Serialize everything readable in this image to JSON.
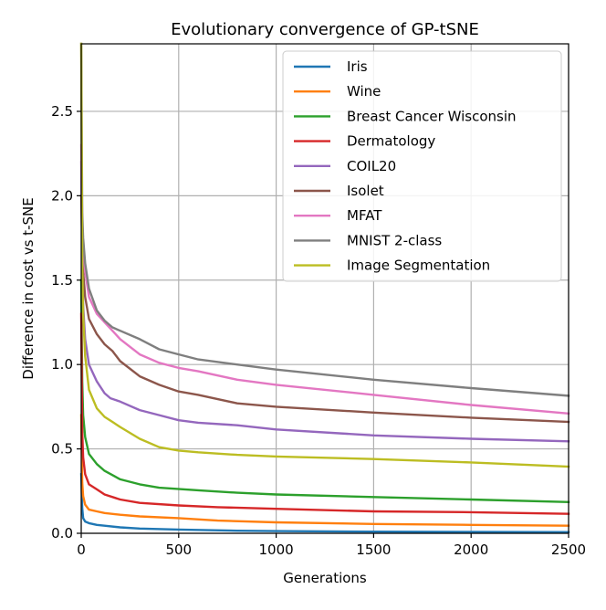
{
  "chart_data": {
    "type": "line",
    "title": "Evolutionary convergence of GP-tSNE",
    "xlabel": "Generations",
    "ylabel": "Difference in cost vs t-SNE",
    "xlim": [
      0,
      2500
    ],
    "ylim": [
      0,
      2.9
    ],
    "xticks": [
      0,
      500,
      1000,
      1500,
      2000,
      2500
    ],
    "yticks": [
      0.0,
      0.5,
      1.0,
      1.5,
      2.0,
      2.5
    ],
    "xtick_labels": [
      "0",
      "500",
      "1000",
      "1500",
      "2000",
      "2500"
    ],
    "ytick_labels": [
      "0.0",
      "0.5",
      "1.0",
      "1.5",
      "2.0",
      "2.5"
    ],
    "grid": true,
    "legend_position": "top-right",
    "series": [
      {
        "name": "Iris",
        "color": "#1f77b4",
        "x": [
          0,
          5,
          10,
          20,
          40,
          80,
          120,
          200,
          300,
          500,
          800,
          1000,
          1500,
          2000,
          2500
        ],
        "y": [
          0.35,
          0.15,
          0.09,
          0.07,
          0.06,
          0.05,
          0.045,
          0.035,
          0.028,
          0.022,
          0.015,
          0.013,
          0.01,
          0.008,
          0.007
        ]
      },
      {
        "name": "Wine",
        "color": "#ff7f0e",
        "x": [
          0,
          5,
          10,
          20,
          40,
          80,
          120,
          200,
          300,
          500,
          700,
          1000,
          1500,
          2000,
          2500
        ],
        "y": [
          0.7,
          0.3,
          0.22,
          0.17,
          0.14,
          0.13,
          0.12,
          0.11,
          0.1,
          0.09,
          0.075,
          0.065,
          0.055,
          0.05,
          0.045
        ]
      },
      {
        "name": "Breast Cancer Wisconsin",
        "color": "#2ca02c",
        "x": [
          0,
          5,
          10,
          20,
          40,
          80,
          120,
          200,
          300,
          400,
          600,
          800,
          1000,
          1500,
          2000,
          2500
        ],
        "y": [
          1.5,
          0.9,
          0.7,
          0.57,
          0.47,
          0.41,
          0.37,
          0.32,
          0.29,
          0.27,
          0.255,
          0.24,
          0.23,
          0.215,
          0.2,
          0.185
        ]
      },
      {
        "name": "Dermatology",
        "color": "#d62728",
        "x": [
          0,
          5,
          10,
          20,
          40,
          80,
          120,
          200,
          300,
          500,
          700,
          1000,
          1500,
          2000,
          2500
        ],
        "y": [
          1.3,
          0.6,
          0.45,
          0.35,
          0.29,
          0.26,
          0.23,
          0.2,
          0.18,
          0.165,
          0.155,
          0.145,
          0.13,
          0.125,
          0.115
        ]
      },
      {
        "name": "COIL20",
        "color": "#9467bd",
        "x": [
          0,
          5,
          10,
          20,
          40,
          80,
          120,
          150,
          200,
          300,
          400,
          500,
          600,
          800,
          1000,
          1500,
          2000,
          2500
        ],
        "y": [
          2.2,
          1.6,
          1.35,
          1.15,
          1.0,
          0.9,
          0.83,
          0.8,
          0.78,
          0.73,
          0.7,
          0.67,
          0.655,
          0.64,
          0.615,
          0.58,
          0.56,
          0.545
        ]
      },
      {
        "name": "Isolet",
        "color": "#8c564b",
        "x": [
          0,
          5,
          10,
          20,
          40,
          80,
          120,
          160,
          200,
          300,
          400,
          500,
          600,
          800,
          1000,
          1500,
          2000,
          2500
        ],
        "y": [
          2.0,
          1.7,
          1.55,
          1.4,
          1.27,
          1.18,
          1.12,
          1.08,
          1.02,
          0.93,
          0.88,
          0.84,
          0.82,
          0.77,
          0.75,
          0.715,
          0.685,
          0.66
        ]
      },
      {
        "name": "MFAT",
        "color": "#e377c2",
        "x": [
          0,
          5,
          10,
          20,
          40,
          80,
          120,
          160,
          200,
          300,
          400,
          500,
          600,
          800,
          1000,
          1500,
          2000,
          2500
        ],
        "y": [
          2.3,
          1.85,
          1.7,
          1.55,
          1.4,
          1.3,
          1.25,
          1.2,
          1.15,
          1.06,
          1.01,
          0.98,
          0.96,
          0.91,
          0.88,
          0.82,
          0.76,
          0.71
        ]
      },
      {
        "name": "MNIST 2-class",
        "color": "#7f7f7f",
        "x": [
          0,
          5,
          10,
          20,
          40,
          80,
          120,
          160,
          200,
          300,
          400,
          500,
          600,
          800,
          1000,
          1500,
          2000,
          2500
        ],
        "y": [
          2.9,
          1.9,
          1.75,
          1.6,
          1.45,
          1.32,
          1.26,
          1.22,
          1.2,
          1.15,
          1.09,
          1.06,
          1.03,
          1.0,
          0.97,
          0.91,
          0.86,
          0.815
        ]
      },
      {
        "name": "Image Segmentation",
        "color": "#bcbd22",
        "x": [
          0,
          5,
          10,
          20,
          40,
          80,
          120,
          160,
          200,
          300,
          400,
          500,
          600,
          800,
          1000,
          1500,
          2000,
          2500
        ],
        "y": [
          2.9,
          1.6,
          1.3,
          1.05,
          0.85,
          0.74,
          0.69,
          0.66,
          0.63,
          0.56,
          0.51,
          0.49,
          0.48,
          0.465,
          0.455,
          0.44,
          0.42,
          0.395
        ]
      }
    ]
  }
}
